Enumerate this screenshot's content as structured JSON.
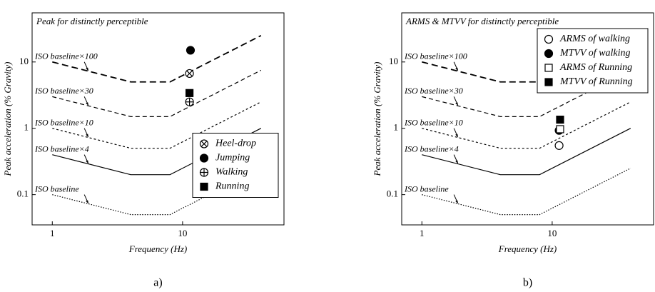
{
  "chart_data": [
    {
      "type": "line",
      "title": "Peak for distinctly perceptible",
      "caption": "a)",
      "x_label": "Frequency (Hz)",
      "y_label": "Peak acceleration (% Gravity)",
      "xlim": [
        0.7,
        60
      ],
      "ylim": [
        0.035,
        55
      ],
      "xticks": [
        1,
        10
      ],
      "yticks": [
        0.1,
        1,
        10
      ],
      "x_log": true,
      "y_log": true,
      "legend": "center right",
      "curves_x": [
        1,
        4,
        8,
        40
      ],
      "curves": [
        {
          "name": "ISO baseline",
          "values": [
            0.1,
            0.05,
            0.05,
            0.25
          ],
          "dash": "1.5,2",
          "color": "#000000"
        },
        {
          "name": "ISO baseline×4",
          "values": [
            0.4,
            0.2,
            0.2,
            1
          ],
          "dash": "none",
          "color": "#000000"
        },
        {
          "name": "ISO baseline×10",
          "values": [
            1,
            0.5,
            0.5,
            2.5
          ],
          "dash": "3,3",
          "color": "#000000"
        },
        {
          "name": "ISO baseline×30",
          "values": [
            3,
            1.5,
            1.5,
            7.5
          ],
          "dash": "6,4",
          "color": "#000000"
        },
        {
          "name": "ISO baseline×100",
          "values": [
            10,
            5,
            5,
            25
          ],
          "dash": "9,5",
          "color": "#000000"
        }
      ],
      "series": [
        {
          "name": "Heel-drop",
          "marker": "circle-x",
          "color": "#000000",
          "x": [
            11.3
          ],
          "values": [
            6.7
          ]
        },
        {
          "name": "Jumping",
          "marker": "circle",
          "color": "#000000",
          "x": [
            11.5
          ],
          "values": [
            15
          ]
        },
        {
          "name": "Walking",
          "marker": "circle-plus",
          "color": "#000000",
          "x": [
            11.3
          ],
          "values": [
            2.5
          ]
        },
        {
          "name": "Running",
          "marker": "square",
          "color": "#000000",
          "x": [
            11.3
          ],
          "values": [
            3.4
          ]
        }
      ]
    },
    {
      "type": "line",
      "title": "ARMS & MTVV for distinctly perceptible",
      "caption": "b)",
      "x_label": "Frequency (Hz)",
      "y_label": "Peak acceleration (% Gravity)",
      "xlim": [
        0.7,
        60
      ],
      "ylim": [
        0.035,
        55
      ],
      "xticks": [
        1,
        10
      ],
      "yticks": [
        0.1,
        1,
        10
      ],
      "x_log": true,
      "y_log": true,
      "legend": "upper right",
      "curves_x": [
        1,
        4,
        8,
        40
      ],
      "curves": [
        {
          "name": "ISO baseline",
          "values": [
            0.1,
            0.05,
            0.05,
            0.25
          ],
          "dash": "1.5,2",
          "color": "#000000"
        },
        {
          "name": "ISO baseline×4",
          "values": [
            0.4,
            0.2,
            0.2,
            1
          ],
          "dash": "none",
          "color": "#000000"
        },
        {
          "name": "ISO baseline×10",
          "values": [
            1,
            0.5,
            0.5,
            2.5
          ],
          "dash": "3,3",
          "color": "#000000"
        },
        {
          "name": "ISO baseline×30",
          "values": [
            3,
            1.5,
            1.5,
            7.5
          ],
          "dash": "6,4",
          "color": "#000000"
        },
        {
          "name": "ISO baseline×100",
          "values": [
            10,
            5,
            5,
            25
          ],
          "dash": "9,5",
          "color": "#000000"
        }
      ],
      "series": [
        {
          "name": "ARMS of walking",
          "marker": "circle-open",
          "color": "#000000",
          "x": [
            11.3
          ],
          "values": [
            0.55
          ]
        },
        {
          "name": "MTVV of walking",
          "marker": "circle",
          "color": "#000000",
          "x": [
            11.3
          ],
          "values": [
            0.93
          ]
        },
        {
          "name": "ARMS of Running",
          "marker": "square-open",
          "color": "#000000",
          "x": [
            11.5
          ],
          "values": [
            0.97
          ]
        },
        {
          "name": "MTVV of Running",
          "marker": "square",
          "color": "#000000",
          "x": [
            11.5
          ],
          "values": [
            1.35
          ]
        }
      ]
    }
  ]
}
